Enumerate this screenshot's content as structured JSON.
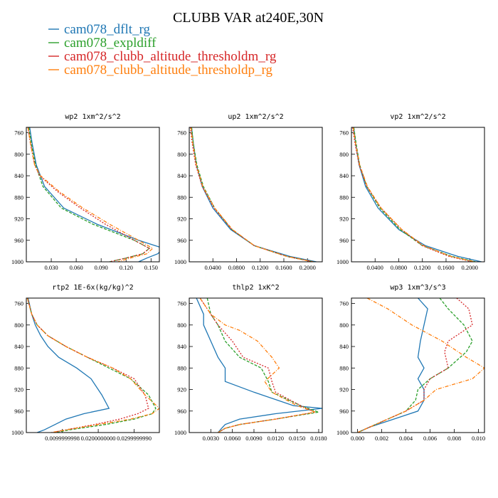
{
  "title": "CLUBB VAR at240E,30N",
  "legend": [
    {
      "name": "cam078_dflt_rg",
      "color": "#1f77b4"
    },
    {
      "name": "cam078_expldiff",
      "color": "#2ca02c"
    },
    {
      "name": "cam078_clubb_altitude_thresholdm_rg",
      "color": "#d62728"
    },
    {
      "name": "cam078_clubb_altitude_thresholdp_rg",
      "color": "#ff7f0e"
    }
  ],
  "chart_data": [
    {
      "type": "line",
      "title": "wp2  1xm^2/s^2",
      "yticks": [
        "760",
        "800",
        "840",
        "880",
        "920",
        "960",
        "1000"
      ],
      "ylim": [
        1000,
        750
      ],
      "xlim": [
        0,
        0.16
      ],
      "xticks": [
        {
          "v": 0.03,
          "label": "0.030"
        },
        {
          "v": 0.06,
          "label": "0.060"
        },
        {
          "v": 0.09,
          "label": "0.090"
        },
        {
          "v": 0.12,
          "label": "0.120"
        },
        {
          "v": 0.15,
          "label": "0.150"
        }
      ],
      "series": [
        {
          "y": [
            750,
            780,
            820,
            860,
            900,
            930,
            960,
            975,
            985,
            993,
            1000
          ],
          "values": [
            0.004,
            0.007,
            0.012,
            0.022,
            0.045,
            0.085,
            0.135,
            0.165,
            0.158,
            0.145,
            0.135
          ]
        },
        {
          "y": [
            750,
            780,
            820,
            860,
            900,
            930,
            960,
            975,
            985,
            993,
            1000
          ],
          "values": [
            0.003,
            0.006,
            0.011,
            0.02,
            0.042,
            0.08,
            0.13,
            0.148,
            0.14,
            0.12,
            0.1
          ]
        },
        {
          "y": [
            750,
            780,
            820,
            840,
            870,
            900,
            930,
            960,
            975,
            985,
            993,
            1000
          ],
          "values": [
            0.002,
            0.005,
            0.01,
            0.016,
            0.038,
            0.065,
            0.095,
            0.13,
            0.148,
            0.14,
            0.12,
            0.1
          ]
        },
        {
          "y": [
            750,
            780,
            820,
            840,
            870,
            900,
            930,
            960,
            975,
            985,
            993,
            1000
          ],
          "values": [
            0.002,
            0.005,
            0.01,
            0.017,
            0.04,
            0.068,
            0.1,
            0.135,
            0.152,
            0.145,
            0.125,
            0.11
          ]
        }
      ]
    },
    {
      "type": "line",
      "title": "up2  1xm^2/s^2",
      "yticks": [
        "760",
        "800",
        "840",
        "880",
        "920",
        "960",
        "1000"
      ],
      "ylim": [
        1000,
        750
      ],
      "xlim": [
        0,
        0.225
      ],
      "xticks": [
        {
          "v": 0.04,
          "label": "0.0400"
        },
        {
          "v": 0.08,
          "label": "0.0800"
        },
        {
          "v": 0.12,
          "label": "0.1200"
        },
        {
          "v": 0.16,
          "label": "0.1600"
        },
        {
          "v": 0.2,
          "label": "0.2000"
        }
      ],
      "series": [
        {
          "y": [
            750,
            780,
            820,
            860,
            900,
            940,
            970,
            990,
            1000
          ],
          "values": [
            0.004,
            0.007,
            0.012,
            0.022,
            0.04,
            0.07,
            0.11,
            0.17,
            0.215
          ]
        },
        {
          "y": [
            750,
            780,
            820,
            860,
            900,
            940,
            970,
            990,
            1000
          ],
          "values": [
            0.004,
            0.007,
            0.013,
            0.024,
            0.043,
            0.072,
            0.11,
            0.165,
            0.21
          ]
        },
        {
          "y": [
            750,
            780,
            820,
            860,
            900,
            940,
            970,
            990,
            1000
          ],
          "values": [
            0.002,
            0.005,
            0.011,
            0.022,
            0.042,
            0.072,
            0.11,
            0.165,
            0.21
          ]
        },
        {
          "y": [
            750,
            780,
            820,
            860,
            900,
            940,
            970,
            990,
            1000
          ],
          "values": [
            0.003,
            0.006,
            0.012,
            0.023,
            0.043,
            0.073,
            0.11,
            0.165,
            0.21
          ]
        }
      ]
    },
    {
      "type": "line",
      "title": "vp2  1xm^2/s^2",
      "yticks": [
        "760",
        "800",
        "840",
        "880",
        "920",
        "960",
        "1000"
      ],
      "ylim": [
        1000,
        750
      ],
      "xlim": [
        0,
        0.225
      ],
      "xticks": [
        {
          "v": 0.04,
          "label": "0.0400"
        },
        {
          "v": 0.08,
          "label": "0.0800"
        },
        {
          "v": 0.12,
          "label": "0.1200"
        },
        {
          "v": 0.16,
          "label": "0.1600"
        },
        {
          "v": 0.2,
          "label": "0.2000"
        }
      ],
      "series": [
        {
          "y": [
            750,
            780,
            820,
            860,
            900,
            940,
            970,
            990,
            1000
          ],
          "values": [
            0.004,
            0.007,
            0.013,
            0.024,
            0.045,
            0.08,
            0.125,
            0.18,
            0.22
          ]
        },
        {
          "y": [
            750,
            780,
            820,
            860,
            900,
            940,
            970,
            990,
            1000
          ],
          "values": [
            0.004,
            0.008,
            0.014,
            0.026,
            0.048,
            0.082,
            0.12,
            0.17,
            0.21
          ]
        },
        {
          "y": [
            750,
            780,
            820,
            860,
            900,
            940,
            970,
            990,
            1000
          ],
          "values": [
            0.002,
            0.006,
            0.013,
            0.026,
            0.05,
            0.085,
            0.12,
            0.165,
            0.205
          ]
        },
        {
          "y": [
            750,
            780,
            820,
            860,
            900,
            940,
            970,
            990,
            1000
          ],
          "values": [
            0.003,
            0.007,
            0.014,
            0.027,
            0.05,
            0.085,
            0.122,
            0.168,
            0.208
          ]
        }
      ]
    },
    {
      "type": "line",
      "title": "rtp2  1E-6x(kg/kg)^2",
      "yticks": [
        "760",
        "800",
        "840",
        "880",
        "920",
        "960",
        "1000"
      ],
      "ylim": [
        1000,
        750
      ],
      "xlim": [
        0,
        0.037
      ],
      "xticks": [
        {
          "v": 0.01,
          "label": "0.0099999998"
        },
        {
          "v": 0.02,
          "label": "0.0200000000"
        },
        {
          "v": 0.03,
          "label": "0.0299999990"
        }
      ],
      "series": [
        {
          "y": [
            750,
            780,
            800,
            820,
            840,
            860,
            880,
            900,
            930,
            955,
            965,
            975,
            985,
            995,
            1000
          ],
          "values": [
            0.0005,
            0.0015,
            0.0025,
            0.004,
            0.006,
            0.009,
            0.014,
            0.018,
            0.021,
            0.023,
            0.016,
            0.011,
            0.008,
            0.005,
            0.003
          ]
        },
        {
          "y": [
            750,
            780,
            800,
            820,
            840,
            860,
            880,
            900,
            930,
            955,
            965,
            975,
            985,
            995,
            1000
          ],
          "values": [
            0.0003,
            0.0015,
            0.003,
            0.006,
            0.011,
            0.017,
            0.023,
            0.029,
            0.034,
            0.036,
            0.035,
            0.03,
            0.022,
            0.012,
            0.008
          ]
        },
        {
          "y": [
            750,
            780,
            800,
            820,
            840,
            860,
            880,
            900,
            930,
            955,
            965,
            975,
            985,
            995,
            1000
          ],
          "values": [
            0.0003,
            0.0015,
            0.003,
            0.006,
            0.011,
            0.017,
            0.024,
            0.03,
            0.033,
            0.034,
            0.031,
            0.026,
            0.019,
            0.011,
            0.007
          ]
        },
        {
          "y": [
            750,
            780,
            800,
            820,
            840,
            860,
            880,
            900,
            930,
            955,
            965,
            975,
            985,
            995,
            1000
          ],
          "values": [
            0.0003,
            0.0015,
            0.003,
            0.006,
            0.011,
            0.017,
            0.024,
            0.029,
            0.033,
            0.037,
            0.035,
            0.029,
            0.02,
            0.011,
            0.007
          ]
        }
      ]
    },
    {
      "type": "line",
      "title": "thlp2  1xK^2",
      "yticks": [
        "760",
        "800",
        "840",
        "880",
        "920",
        "960",
        "1000"
      ],
      "ylim": [
        1000,
        750
      ],
      "xlim": [
        0,
        0.0185
      ],
      "xticks": [
        {
          "v": 0.003,
          "label": "0.0030"
        },
        {
          "v": 0.006,
          "label": "0.0060"
        },
        {
          "v": 0.009,
          "label": "0.0090"
        },
        {
          "v": 0.012,
          "label": "0.0120"
        },
        {
          "v": 0.015,
          "label": "0.0150"
        },
        {
          "v": 0.018,
          "label": "0.0180"
        }
      ],
      "series": [
        {
          "y": [
            750,
            780,
            800,
            830,
            860,
            880,
            905,
            925,
            950,
            955,
            965,
            975,
            985,
            992,
            1000
          ],
          "values": [
            0.001,
            0.002,
            0.002,
            0.003,
            0.004,
            0.005,
            0.005,
            0.009,
            0.0145,
            0.0185,
            0.012,
            0.007,
            0.005,
            0.0045,
            0.004
          ]
        },
        {
          "y": [
            750,
            780,
            800,
            830,
            860,
            880,
            905,
            925,
            950,
            962,
            975,
            985,
            992,
            1000
          ],
          "values": [
            0.0025,
            0.003,
            0.004,
            0.005,
            0.007,
            0.01,
            0.011,
            0.0115,
            0.0155,
            0.018,
            0.012,
            0.007,
            0.005,
            0.004
          ]
        },
        {
          "y": [
            750,
            780,
            800,
            830,
            860,
            880,
            905,
            925,
            950,
            962,
            975,
            985,
            992,
            1000
          ],
          "values": [
            0.0015,
            0.003,
            0.004,
            0.006,
            0.0075,
            0.011,
            0.0115,
            0.012,
            0.0155,
            0.0175,
            0.012,
            0.007,
            0.005,
            0.004
          ]
        },
        {
          "y": [
            750,
            780,
            800,
            810,
            830,
            860,
            880,
            905,
            925,
            950,
            962,
            975,
            985,
            992,
            1000
          ],
          "values": [
            0.0015,
            0.003,
            0.005,
            0.007,
            0.0095,
            0.0115,
            0.0125,
            0.0105,
            0.0115,
            0.015,
            0.0175,
            0.012,
            0.007,
            0.005,
            0.004
          ]
        }
      ]
    },
    {
      "type": "line",
      "title": "wp3  1xm^3/s^3",
      "yticks": [
        "760",
        "800",
        "840",
        "880",
        "920",
        "960",
        "1000"
      ],
      "ylim": [
        1000,
        750
      ],
      "xlim": [
        -0.0005,
        0.0105
      ],
      "xticks": [
        {
          "v": 0,
          "label": "0.000"
        },
        {
          "v": 0.002,
          "label": "0.002"
        },
        {
          "v": 0.004,
          "label": "0.004"
        },
        {
          "v": 0.006,
          "label": "0.006"
        },
        {
          "v": 0.008,
          "label": "0.008"
        },
        {
          "v": 0.01,
          "label": "0.010"
        }
      ],
      "series": [
        {
          "y": [
            750,
            770,
            800,
            830,
            860,
            880,
            900,
            920,
            940,
            960,
            975,
            990,
            1000
          ],
          "values": [
            0.005,
            0.0058,
            0.0055,
            0.0052,
            0.005,
            0.0055,
            0.005,
            0.0055,
            0.0055,
            0.005,
            0.003,
            0.001,
            0
          ]
        },
        {
          "y": [
            750,
            770,
            800,
            830,
            850,
            880,
            900,
            920,
            940,
            960,
            975,
            990,
            1000
          ],
          "values": [
            0.0068,
            0.0075,
            0.0088,
            0.0095,
            0.009,
            0.0075,
            0.006,
            0.005,
            0.0048,
            0.004,
            0.0025,
            0.001,
            0
          ]
        },
        {
          "y": [
            750,
            770,
            800,
            830,
            850,
            880,
            900,
            920,
            940,
            960,
            975,
            990,
            1000
          ],
          "values": [
            0.0082,
            0.0092,
            0.0095,
            0.0075,
            0.0072,
            0.0075,
            0.006,
            0.0055,
            0.0055,
            0.004,
            0.0025,
            0.001,
            0
          ]
        },
        {
          "y": [
            750,
            770,
            800,
            830,
            860,
            880,
            900,
            920,
            940,
            960,
            975,
            990,
            1000
          ],
          "values": [
            0.0008,
            0.0025,
            0.0045,
            0.007,
            0.009,
            0.0105,
            0.0095,
            0.0065,
            0.0055,
            0.004,
            0.0025,
            0.001,
            0
          ]
        }
      ]
    }
  ]
}
